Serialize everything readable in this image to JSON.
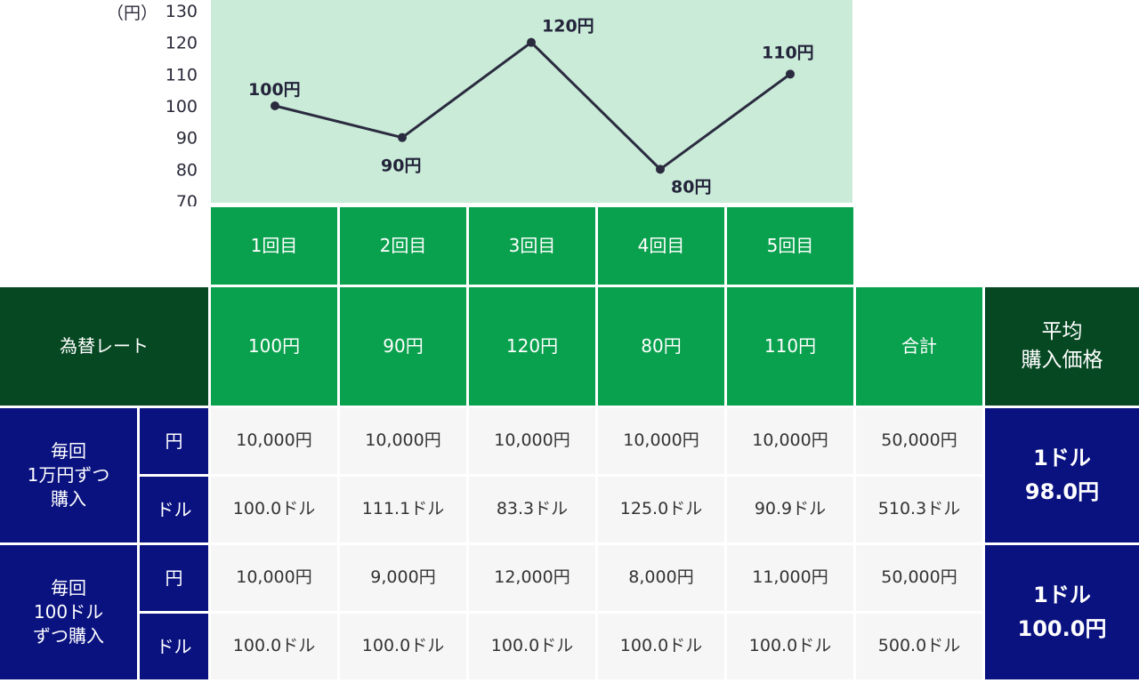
{
  "chart_data": {
    "type": "line",
    "yunit": "（円）",
    "yticks": [
      130,
      120,
      110,
      100,
      90,
      80,
      70
    ],
    "ylim": [
      70,
      130
    ],
    "categories": [
      "1回目",
      "2回目",
      "3回目",
      "4回目",
      "5回目"
    ],
    "values": [
      100,
      90,
      120,
      80,
      110
    ],
    "point_labels": [
      "100円",
      "90円",
      "120円",
      "80円",
      "110円"
    ],
    "colors": {
      "line": "#2b2b3f",
      "plot_bg": "#c9ebd8"
    }
  },
  "table": {
    "header_label": "為替レート",
    "rates": [
      "100円",
      "90円",
      "120円",
      "80円",
      "110円"
    ],
    "total_label": "合計",
    "avg_label": "平均\n購入価格",
    "sections": [
      {
        "label": "毎回\n1万円ずつ\n購入",
        "rows": [
          {
            "unit": "円",
            "values": [
              "10,000円",
              "10,000円",
              "10,000円",
              "10,000円",
              "10,000円"
            ],
            "total": "50,000円"
          },
          {
            "unit": "ドル",
            "values": [
              "100.0ドル",
              "111.1ドル",
              "83.3ドル",
              "125.0ドル",
              "90.9ドル"
            ],
            "total": "510.3ドル"
          }
        ],
        "average": "1ドル\n98.0円"
      },
      {
        "label": "毎回\n100ドル\nずつ購入",
        "rows": [
          {
            "unit": "円",
            "values": [
              "10,000円",
              "9,000円",
              "12,000円",
              "8,000円",
              "11,000円"
            ],
            "total": "50,000円"
          },
          {
            "unit": "ドル",
            "values": [
              "100.0ドル",
              "100.0ドル",
              "100.0ドル",
              "100.0ドル",
              "100.0ドル"
            ],
            "total": "500.0ドル"
          }
        ],
        "average": "1ドル\n100.0円"
      }
    ]
  }
}
